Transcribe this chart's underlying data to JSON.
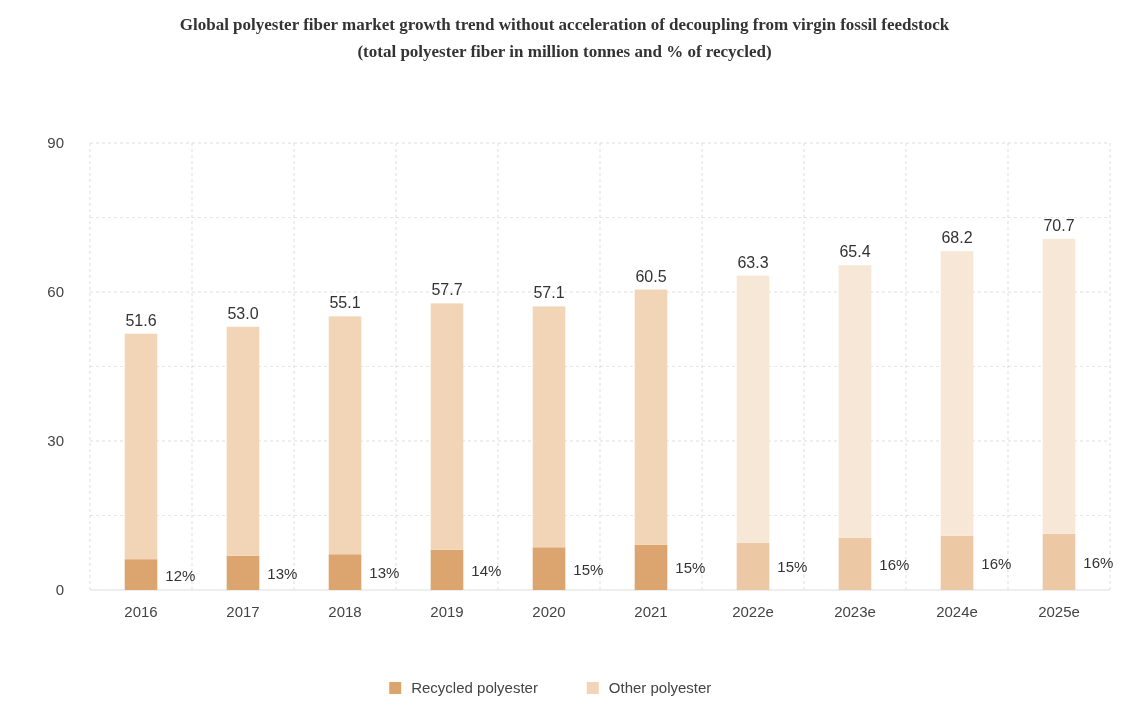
{
  "chart_data": {
    "type": "bar",
    "stacked": true,
    "title": "Global polyester fiber market growth trend without acceleration of decoupling from virgin fossil feedstock",
    "subtitle": "(total polyester fiber in million tonnes and % of recycled)",
    "categories": [
      "2016",
      "2017",
      "2018",
      "2019",
      "2020",
      "2021",
      "2022e",
      "2023e",
      "2024e",
      "2025e"
    ],
    "series": [
      {
        "name": "Recycled polyester",
        "color": "#dca46e",
        "colors": [
          "#dca46e",
          "#dca46e",
          "#dca46e",
          "#dca46e",
          "#dca46e",
          "#dca46e",
          "#ecc9a4",
          "#ecc9a4",
          "#ecc9a4",
          "#ecc9a4"
        ],
        "values": [
          6.2,
          6.9,
          7.2,
          8.1,
          8.6,
          9.1,
          9.5,
          10.5,
          10.9,
          11.3
        ]
      },
      {
        "name": "Other polyester",
        "color": "#f2d5b6",
        "colors": [
          "#f2d5b6",
          "#f2d5b6",
          "#f2d5b6",
          "#f2d5b6",
          "#f2d5b6",
          "#f2d5b6",
          "#f7e7d6",
          "#f7e7d6",
          "#f7e7d6",
          "#f7e7d6"
        ],
        "values": [
          45.4,
          46.1,
          47.9,
          49.6,
          48.5,
          51.4,
          53.8,
          54.9,
          57.3,
          59.4
        ]
      }
    ],
    "totals": [
      "51.6",
      "53.0",
      "55.1",
      "57.7",
      "57.1",
      "60.5",
      "63.3",
      "65.4",
      "68.2",
      "70.7"
    ],
    "annotations": [
      {
        "text": "12%",
        "x": "2016",
        "y": 6.2
      },
      {
        "text": "13%",
        "x": "2017",
        "y": 6.9
      },
      {
        "text": "13%",
        "x": "2018",
        "y": 7.2
      },
      {
        "text": "14%",
        "x": "2019",
        "y": 8.1
      },
      {
        "text": "15%",
        "x": "2020",
        "y": 8.6
      },
      {
        "text": "15%",
        "x": "2021",
        "y": 9.1
      },
      {
        "text": "15%",
        "x": "2022e",
        "y": 9.5
      },
      {
        "text": "16%",
        "x": "2023e",
        "y": 10.5
      },
      {
        "text": "16%",
        "x": "2024e",
        "y": 10.9
      },
      {
        "text": "16%",
        "x": "2025e",
        "y": 11.3
      }
    ],
    "ylim": [
      0,
      90
    ],
    "yticks": [
      0,
      30,
      60,
      90
    ],
    "grid": true,
    "legend": "bottom"
  }
}
